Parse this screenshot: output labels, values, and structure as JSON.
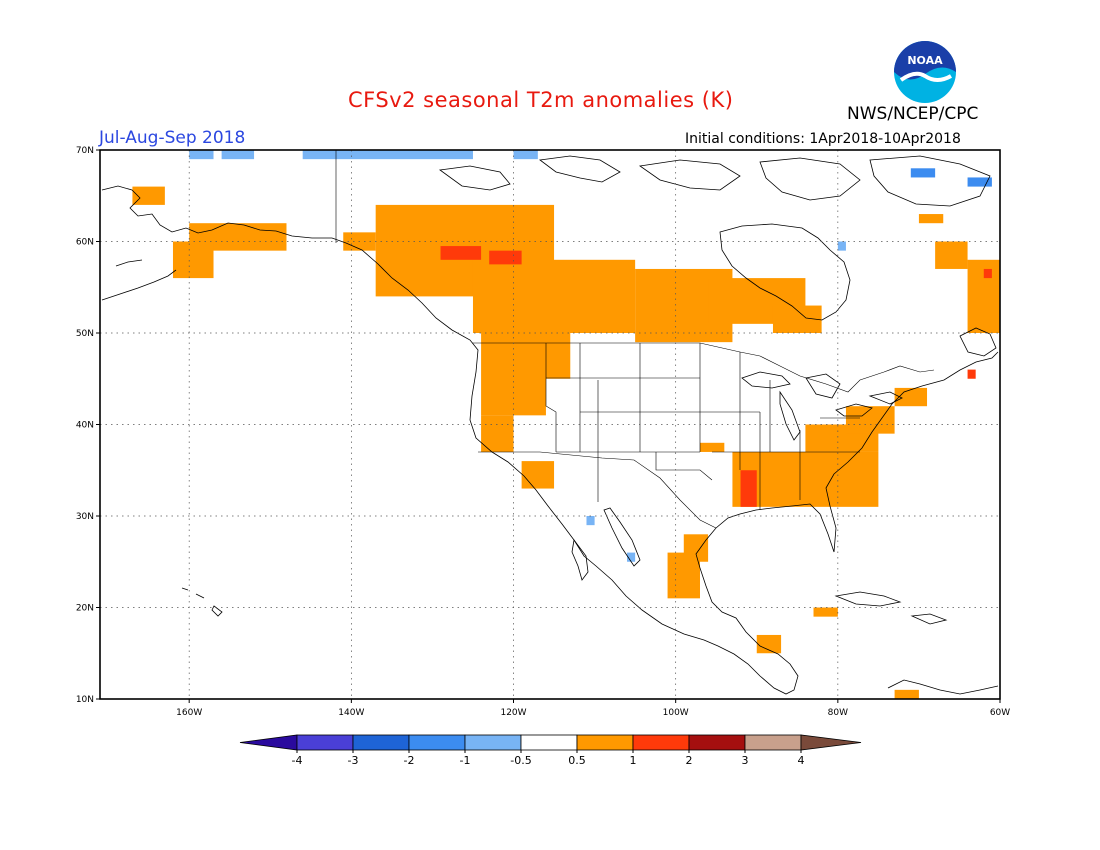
{
  "header": {
    "title": "CFSv2 seasonal T2m anomalies (K)",
    "agency": "NWS/NCEP/CPC",
    "period": "Jul-Aug-Sep 2018",
    "initial_conditions": "Initial conditions: 1Apr2018-10Apr2018",
    "logo_text": "NOAA"
  },
  "map": {
    "lat_range": [
      10,
      70
    ],
    "lon_range": [
      -171,
      -60
    ],
    "lat_ticks": [
      {
        "value": 10,
        "label": "10N"
      },
      {
        "value": 20,
        "label": "20N"
      },
      {
        "value": 30,
        "label": "30N"
      },
      {
        "value": 40,
        "label": "40N"
      },
      {
        "value": 50,
        "label": "50N"
      },
      {
        "value": 60,
        "label": "60N"
      },
      {
        "value": 70,
        "label": "70N"
      }
    ],
    "lon_ticks": [
      {
        "value": -160,
        "label": "160W"
      },
      {
        "value": -140,
        "label": "140W"
      },
      {
        "value": -120,
        "label": "120W"
      },
      {
        "value": -100,
        "label": "100W"
      },
      {
        "value": -80,
        "label": "80W"
      },
      {
        "value": -60,
        "label": "60W"
      }
    ],
    "grid": "dotted"
  },
  "colorbar": {
    "labels": [
      "-4",
      "-3",
      "-2",
      "-1",
      "-0.5",
      "0.5",
      "1",
      "2",
      "3",
      "4"
    ],
    "colors": [
      "#2a0a9e",
      "#4a3fd6",
      "#1e64d6",
      "#3c8cf0",
      "#78b4f5",
      "#ffffff",
      "#ff9900",
      "#ff3a0a",
      "#a50f0f",
      "#c8a08c",
      "#7a4a3a"
    ]
  },
  "anomaly_regions": {
    "warm_1": [
      {
        "lon0": -160,
        "lon1": -148,
        "lat0": 59,
        "lat1": 62
      },
      {
        "lon0": -162,
        "lon1": -157,
        "lat0": 56,
        "lat1": 60
      },
      {
        "lon0": -167,
        "lon1": -163,
        "lat0": 64,
        "lat1": 66
      },
      {
        "lon0": -141,
        "lon1": -137,
        "lat0": 59,
        "lat1": 61
      },
      {
        "lon0": -137,
        "lon1": -115,
        "lat0": 54,
        "lat1": 64
      },
      {
        "lon0": -125,
        "lon1": -105,
        "lat0": 50,
        "lat1": 58
      },
      {
        "lon0": -105,
        "lon1": -93,
        "lat0": 49,
        "lat1": 57
      },
      {
        "lon0": -96,
        "lon1": -84,
        "lat0": 51,
        "lat1": 56
      },
      {
        "lon0": -88,
        "lon1": -82,
        "lat0": 50,
        "lat1": 53
      },
      {
        "lon0": -124,
        "lon1": -116,
        "lat0": 41,
        "lat1": 50
      },
      {
        "lon0": -120,
        "lon1": -113,
        "lat0": 45,
        "lat1": 50
      },
      {
        "lon0": -124,
        "lon1": -120,
        "lat0": 37,
        "lat1": 41
      },
      {
        "lon0": -119,
        "lon1": -115,
        "lat0": 33,
        "lat1": 36
      },
      {
        "lon0": -93,
        "lon1": -75,
        "lat0": 31,
        "lat1": 37
      },
      {
        "lon0": -84,
        "lon1": -75,
        "lat0": 37,
        "lat1": 40
      },
      {
        "lon0": -79,
        "lon1": -73,
        "lat0": 39,
        "lat1": 42
      },
      {
        "lon0": -73,
        "lon1": -69,
        "lat0": 42,
        "lat1": 44
      },
      {
        "lon0": -64,
        "lon1": -60,
        "lat0": 50,
        "lat1": 58
      },
      {
        "lon0": -68,
        "lon1": -64,
        "lat0": 57,
        "lat1": 60
      },
      {
        "lon0": -70,
        "lon1": -67,
        "lat0": 62,
        "lat1": 63
      },
      {
        "lon0": -101,
        "lon1": -97,
        "lat0": 21,
        "lat1": 26
      },
      {
        "lon0": -99,
        "lon1": -96,
        "lat0": 25,
        "lat1": 28
      },
      {
        "lon0": -97,
        "lon1": -94,
        "lat0": 37,
        "lat1": 38
      },
      {
        "lon0": -90,
        "lon1": -87,
        "lat0": 15,
        "lat1": 17
      },
      {
        "lon0": -83,
        "lon1": -80,
        "lat0": 19,
        "lat1": 20
      },
      {
        "lon0": -73,
        "lon1": -70,
        "lat0": 10,
        "lat1": 11
      }
    ],
    "warm_2": [
      {
        "lon0": -129,
        "lon1": -124,
        "lat0": 58,
        "lat1": 59.5
      },
      {
        "lon0": -123,
        "lon1": -119,
        "lat0": 57.5,
        "lat1": 59
      },
      {
        "lon0": -92,
        "lon1": -90,
        "lat0": 31,
        "lat1": 35
      },
      {
        "lon0": -62,
        "lon1": -61,
        "lat0": 56,
        "lat1": 57
      },
      {
        "lon0": -64,
        "lon1": -63,
        "lat0": 45,
        "lat1": 46
      }
    ],
    "cool_1": [
      {
        "lon0": -160,
        "lon1": -157,
        "lat0": 69,
        "lat1": 70
      },
      {
        "lon0": -156,
        "lon1": -152,
        "lat0": 69,
        "lat1": 70
      },
      {
        "lon0": -146,
        "lon1": -125,
        "lat0": 69,
        "lat1": 70
      },
      {
        "lon0": -120,
        "lon1": -117,
        "lat0": 69,
        "lat1": 70
      },
      {
        "lon0": -80,
        "lon1": -79,
        "lat0": 59,
        "lat1": 60
      },
      {
        "lon0": -111,
        "lon1": -110,
        "lat0": 29,
        "lat1": 30
      },
      {
        "lon0": -106,
        "lon1": -105,
        "lat0": 25,
        "lat1": 26
      }
    ],
    "cool_2": [
      {
        "lon0": -64,
        "lon1": -61,
        "lat0": 66,
        "lat1": 67
      },
      {
        "lon0": -71,
        "lon1": -68,
        "lat0": 67,
        "lat1": 68
      }
    ]
  }
}
